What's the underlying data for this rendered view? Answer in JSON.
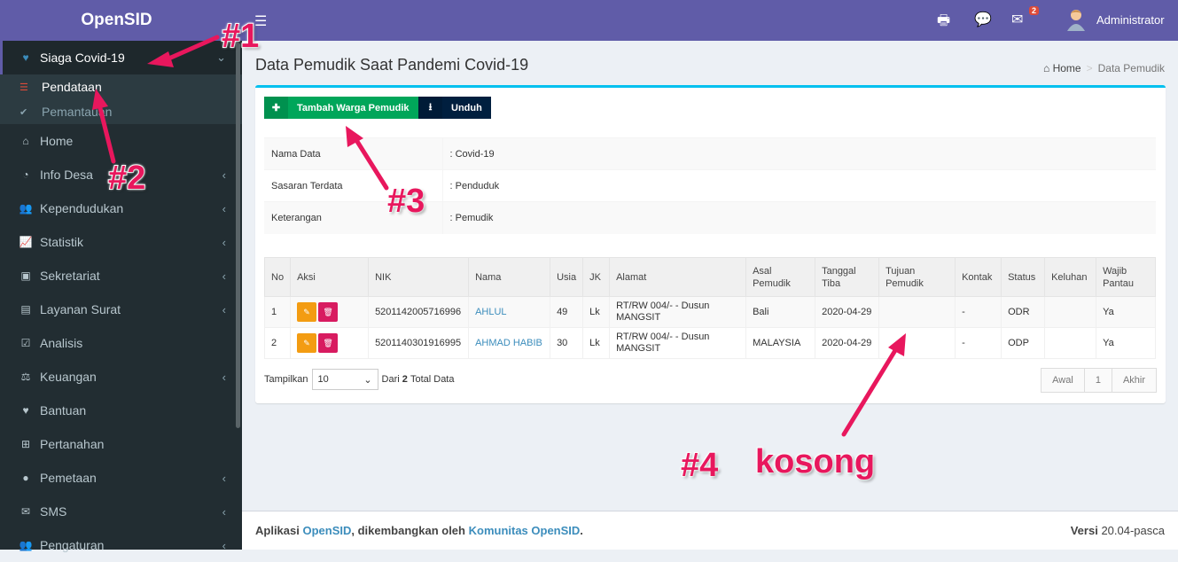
{
  "brand": "OpenSID",
  "sidebar": {
    "active": {
      "icon": "heart-icon",
      "label": "Siaga Covid-19"
    },
    "sub": [
      {
        "label": "Pendataan",
        "icon": "list-icon"
      },
      {
        "label": "Pemantauan",
        "icon": "check-icon"
      }
    ],
    "items": [
      {
        "label": "Home",
        "icon": "home-icon"
      },
      {
        "label": "Info Desa",
        "icon": "dashboard-icon"
      },
      {
        "label": "Kependudukan",
        "icon": "users-icon"
      },
      {
        "label": "Statistik",
        "icon": "chart-icon"
      },
      {
        "label": "Sekretariat",
        "icon": "archive-icon"
      },
      {
        "label": "Layanan Surat",
        "icon": "book-icon"
      },
      {
        "label": "Analisis",
        "icon": "check-square-icon"
      },
      {
        "label": "Keuangan",
        "icon": "balance-icon"
      },
      {
        "label": "Bantuan",
        "icon": "heart-icon"
      },
      {
        "label": "Pertanahan",
        "icon": "signpost-icon"
      },
      {
        "label": "Pemetaan",
        "icon": "globe-icon"
      },
      {
        "label": "SMS",
        "icon": "envelope-icon"
      },
      {
        "label": "Pengaturan",
        "icon": "users-icon"
      }
    ]
  },
  "topbar": {
    "admin": "Administrator",
    "mail_count": "2"
  },
  "page": {
    "title": "Data Pemudik Saat Pandemi Covid-19",
    "breadcrumb_home": "Home",
    "breadcrumb_current": "Data Pemudik"
  },
  "buttons": {
    "add": "Tambah Warga Pemudik",
    "download": "Unduh"
  },
  "info": [
    {
      "label": "Nama Data",
      "value": ": Covid-19"
    },
    {
      "label": "Sasaran Terdata",
      "value": ": Penduduk"
    },
    {
      "label": "Keterangan",
      "value": ": Pemudik"
    }
  ],
  "table": {
    "headers": [
      "No",
      "Aksi",
      "NIK",
      "Nama",
      "Usia",
      "JK",
      "Alamat",
      "Asal Pemudik",
      "Tanggal Tiba",
      "Tujuan Pemudik",
      "Kontak",
      "Status",
      "Keluhan",
      "Wajib Pantau"
    ],
    "rows": [
      {
        "no": "1",
        "nik": "5201142005716996",
        "nama": "AHLUL",
        "usia": "49",
        "jk": "Lk",
        "alamat": "RT/RW 004/- - Dusun MANGSIT",
        "asal": "Bali",
        "tiba": "2020-04-29",
        "tujuan": "",
        "kontak": "-",
        "status": "ODR",
        "keluhan": "",
        "wajib": "Ya"
      },
      {
        "no": "2",
        "nik": "5201140301916995",
        "nama": "AHMAD HABIB",
        "usia": "30",
        "jk": "Lk",
        "alamat": "RT/RW 004/- - Dusun MANGSIT",
        "asal": "MALAYSIA",
        "tiba": "2020-04-29",
        "tujuan": "",
        "kontak": "-",
        "status": "ODP",
        "keluhan": "",
        "wajib": "Ya"
      }
    ]
  },
  "show": {
    "label": "Tampilkan",
    "value": "10",
    "total_pre": "Dari",
    "total": "2",
    "total_post": "Total Data"
  },
  "pagination": [
    "Awal",
    "1",
    "Akhir"
  ],
  "footer": {
    "app": "Aplikasi",
    "opensid": "OpenSID",
    "dev": ", dikembangkan oleh",
    "komunitas": "Komunitas OpenSID",
    "versi_label": "Versi",
    "versi": "20.04-pasca"
  },
  "annotations": {
    "a1": "#1",
    "a2": "#2",
    "a3": "#3",
    "a4": "#4",
    "a4_text": "kosong"
  },
  "colors": {
    "sidebar": "#222d32",
    "header": "#605ca8",
    "accent": "#e8175d",
    "add_button": "#00a65a",
    "download_button": "#001f3f"
  }
}
